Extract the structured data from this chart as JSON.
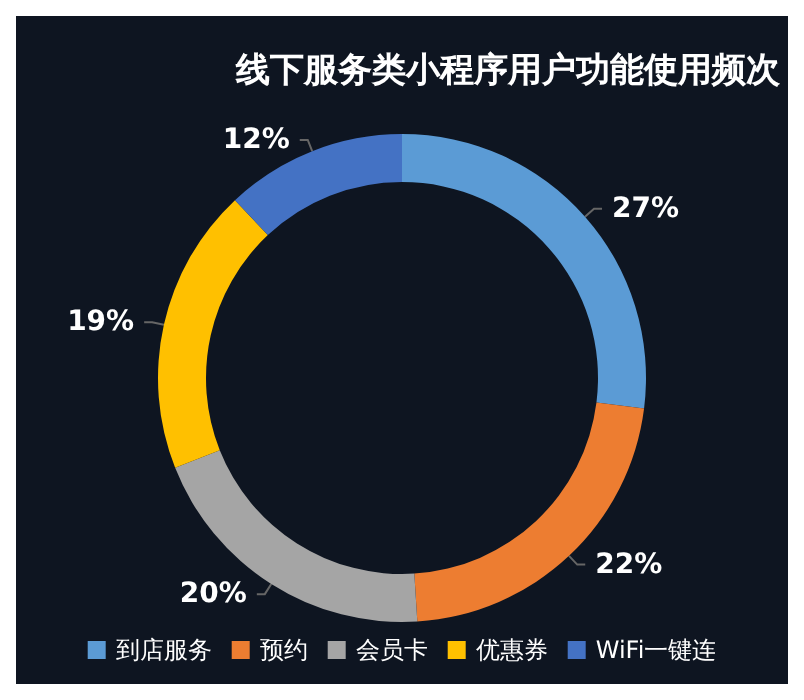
{
  "chart_data": {
    "type": "donut",
    "title": "线下服务类小程序用户功能使用频次",
    "categories": [
      "到店服务",
      "预约",
      "会员卡",
      "优惠券",
      "WiFi一键连"
    ],
    "values": [
      27,
      22,
      20,
      19,
      12
    ],
    "colors": [
      "#5b9bd5",
      "#ed7d31",
      "#a5a5a5",
      "#ffc000",
      "#4472c4"
    ],
    "value_labels": [
      "27%",
      "22%",
      "20%",
      "19%",
      "12%"
    ],
    "legend": "bottom"
  }
}
